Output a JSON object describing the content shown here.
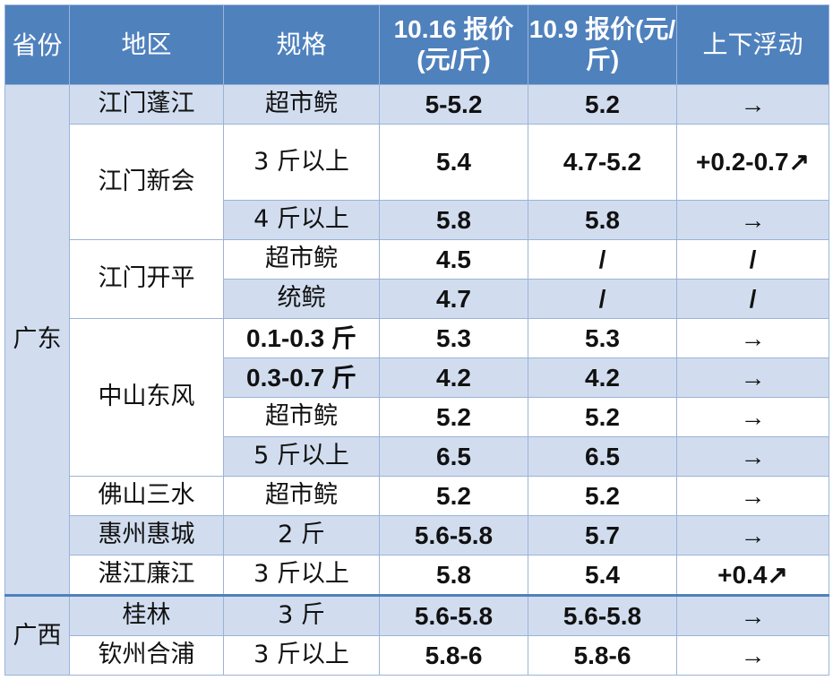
{
  "headers": {
    "province": "省份",
    "region": "地区",
    "spec": "规格",
    "price_now": "10.16 报价(元/斤)",
    "price_prev": "10.9 报价(元/斤)",
    "change": "上下浮动"
  },
  "provinces": [
    {
      "name": "广东"
    },
    {
      "name": "广西"
    }
  ],
  "regions": [
    "江门蓬江",
    "江门新会",
    "江门开平",
    "中山东风",
    "佛山三水",
    "惠州惠城",
    "湛江廉江",
    "桂林",
    "钦州合浦"
  ],
  "rows": [
    {
      "spec": "超市鲩",
      "now": "5-5.2",
      "prev": "5.2",
      "change": "→"
    },
    {
      "spec": "3 斤以上",
      "now": "5.4",
      "prev": "4.7-5.2",
      "change": "+0.2-0.7↗"
    },
    {
      "spec": "4 斤以上",
      "now": "5.8",
      "prev": "5.8",
      "change": "→"
    },
    {
      "spec": "超市鲩",
      "now": "4.5",
      "prev": "/",
      "change": "/"
    },
    {
      "spec": "统鲩",
      "now": "4.7",
      "prev": "/",
      "change": "/"
    },
    {
      "spec": "0.1-0.3 斤",
      "now": "5.3",
      "prev": "5.3",
      "change": "→"
    },
    {
      "spec": "0.3-0.7 斤",
      "now": "4.2",
      "prev": "4.2",
      "change": "→"
    },
    {
      "spec": "超市鲩",
      "now": "5.2",
      "prev": "5.2",
      "change": "→"
    },
    {
      "spec": "5 斤以上",
      "now": "6.5",
      "prev": "6.5",
      "change": "→"
    },
    {
      "spec": "超市鲩",
      "now": "5.2",
      "prev": "5.2",
      "change": "→"
    },
    {
      "spec": "2 斤",
      "now": "5.6-5.8",
      "prev": "5.7",
      "change": "→"
    },
    {
      "spec": "3 斤以上",
      "now": "5.8",
      "prev": "5.4",
      "change": "+0.4↗"
    },
    {
      "spec": "3 斤",
      "now": "5.6-5.8",
      "prev": "5.6-5.8",
      "change": "→"
    },
    {
      "spec": "3 斤以上",
      "now": "5.8-6",
      "prev": "5.8-6",
      "change": "→"
    }
  ],
  "colors": {
    "header": "#4f81bd",
    "band": "#d1ddef",
    "border": "#9cb3d8"
  }
}
